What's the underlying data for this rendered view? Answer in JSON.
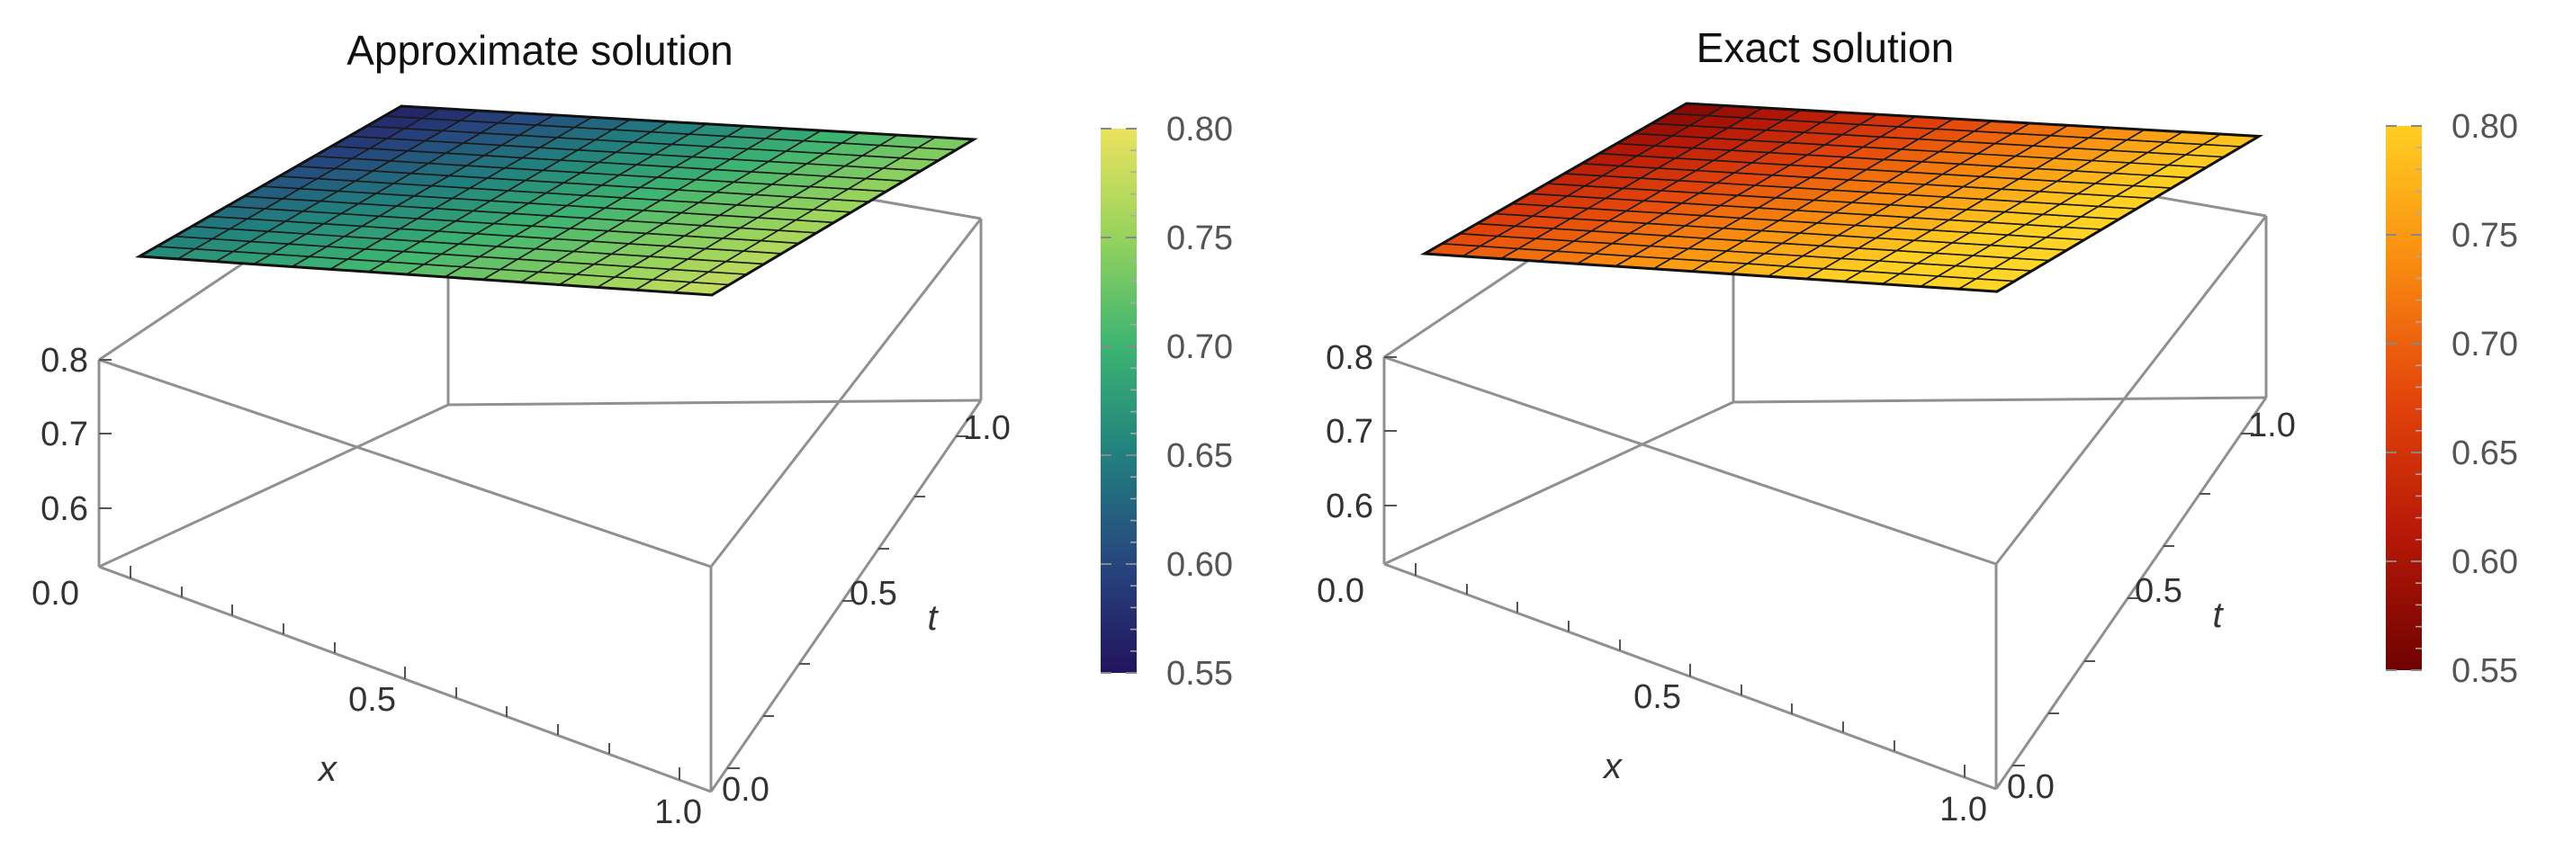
{
  "figure": {
    "panels": [
      {
        "id": "approximate",
        "title": "Approximate solution",
        "colormap": "viridis",
        "colorbar": {
          "ticks": [
            "0.55",
            "0.60",
            "0.65",
            "0.70",
            "0.75",
            "0.80"
          ]
        },
        "ticks": {
          "x": [
            "0.0",
            "0.5",
            "1.0"
          ],
          "t": [
            "0.0",
            "0.5",
            "1.0"
          ],
          "z": [
            "0.6",
            "0.7",
            "0.8"
          ]
        },
        "axis_labels": {
          "x": "x",
          "t": "t"
        }
      },
      {
        "id": "exact",
        "title": "Exact solution",
        "colormap": "solar",
        "colorbar": {
          "ticks": [
            "0.55",
            "0.60",
            "0.65",
            "0.70",
            "0.75",
            "0.80"
          ]
        },
        "ticks": {
          "x": [
            "0.0",
            "0.5",
            "1.0"
          ],
          "t": [
            "0.0",
            "0.5",
            "1.0"
          ],
          "z": [
            "0.6",
            "0.7",
            "0.8"
          ]
        },
        "axis_labels": {
          "x": "x",
          "t": "t"
        }
      }
    ]
  },
  "chart_data": [
    {
      "type": "surface",
      "title": "Approximate solution",
      "xlabel": "x",
      "ylabel": "t",
      "x_range": [
        0,
        1
      ],
      "t_range": [
        0,
        1.1
      ],
      "z_range": [
        0.55,
        0.8
      ],
      "color_range": [
        0.55,
        0.8
      ],
      "grid_lines": 15,
      "corner_values": {
        "x0_t0": 0.66,
        "x1_t0": 0.78,
        "x0_t1": 0.56,
        "x1_t1": 0.74
      }
    },
    {
      "type": "surface",
      "title": "Exact solution",
      "xlabel": "x",
      "ylabel": "t",
      "x_range": [
        0,
        1
      ],
      "t_range": [
        0,
        1.1
      ],
      "z_range": [
        0.55,
        0.8
      ],
      "color_range": [
        0.55,
        0.8
      ],
      "grid_lines": 15,
      "corner_values": {
        "x0_t0": 0.66,
        "x1_t0": 0.79,
        "x0_t1": 0.56,
        "x1_t1": 0.745
      }
    }
  ]
}
